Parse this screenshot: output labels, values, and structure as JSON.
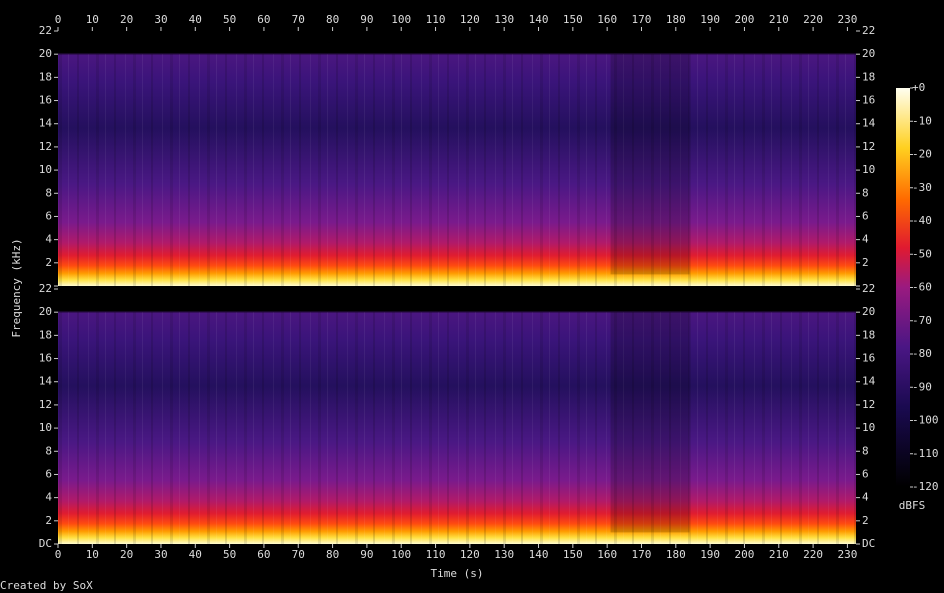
{
  "chart_data": {
    "type": "spectrogram",
    "xlabel": "Time (s)",
    "ylabel": "Frequency (kHz)",
    "xlim": [
      0,
      232.5
    ],
    "xticks": [
      0,
      10,
      20,
      30,
      40,
      50,
      60,
      70,
      80,
      90,
      100,
      110,
      120,
      130,
      140,
      150,
      160,
      170,
      180,
      190,
      200,
      210,
      220,
      230
    ],
    "ylim": [
      0,
      22
    ],
    "yticks": [
      {
        "value": 0,
        "label": "DC"
      },
      2,
      4,
      6,
      8,
      10,
      12,
      14,
      16,
      18,
      20,
      22
    ],
    "channels": 2,
    "colorbar": {
      "label": "dBFS",
      "lim": [
        -120,
        0
      ],
      "ticks": [
        {
          "value": 0,
          "label": "+0"
        },
        -10,
        -20,
        -30,
        -40,
        -50,
        -60,
        -70,
        -80,
        -90,
        -100,
        -110,
        -120
      ]
    }
  },
  "footer": "Created by SoX"
}
